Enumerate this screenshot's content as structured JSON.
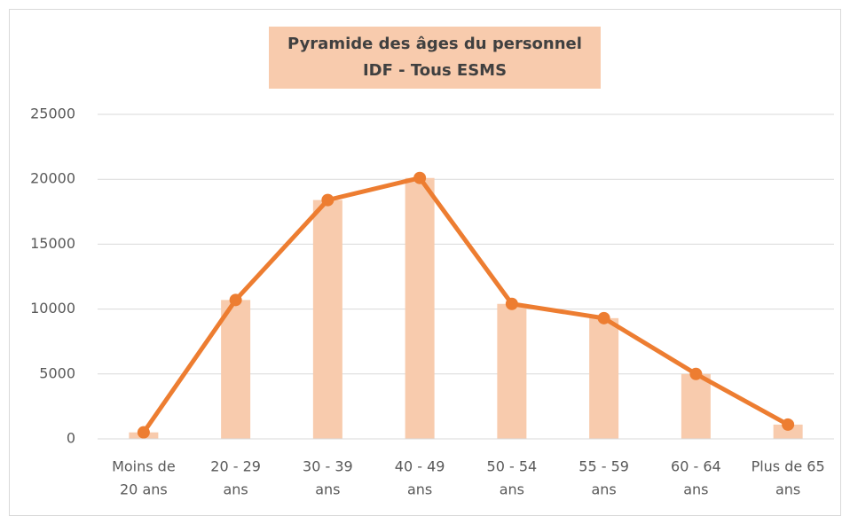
{
  "chart_data": {
    "type": "combo",
    "title": "Pyramide des âges du personnel",
    "subtitle": "IDF - Tous ESMS",
    "title_background": "#f8cbad",
    "categories": [
      [
        "Moins de",
        "20 ans"
      ],
      [
        "20 - 29",
        "ans"
      ],
      [
        "30 - 39",
        "ans"
      ],
      [
        "40 - 49",
        "ans"
      ],
      [
        "50 - 54",
        "ans"
      ],
      [
        "55 - 59",
        "ans"
      ],
      [
        "60 - 64",
        "ans"
      ],
      [
        "Plus de 65",
        "ans"
      ]
    ],
    "series": [
      {
        "type": "bar",
        "color": "#f8cbad",
        "values": [
          500,
          10700,
          18400,
          20100,
          10400,
          9300,
          5000,
          1100
        ]
      },
      {
        "type": "line",
        "color": "#ed7d31",
        "values": [
          500,
          10700,
          18400,
          20100,
          10400,
          9300,
          5000,
          1100
        ]
      }
    ],
    "ylim": [
      0,
      25000
    ],
    "yticks": [
      0,
      5000,
      10000,
      15000,
      20000,
      25000
    ],
    "grid": true
  }
}
